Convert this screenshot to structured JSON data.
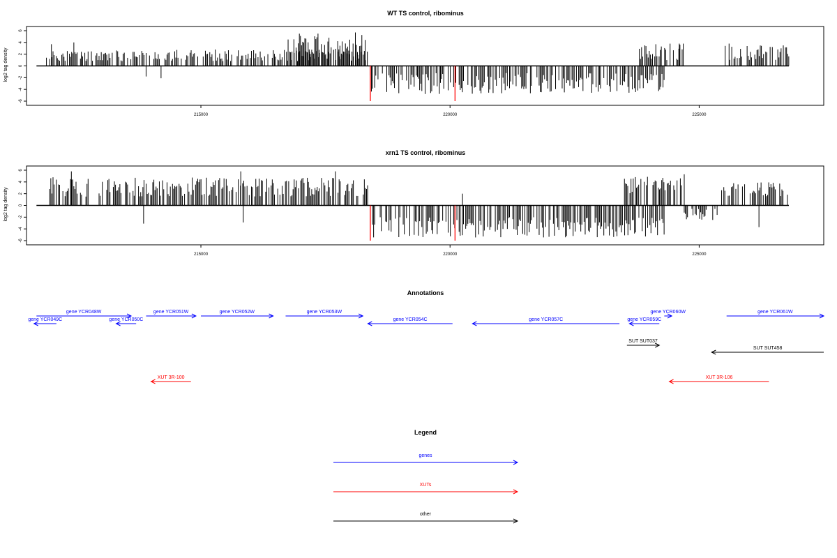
{
  "figure": {
    "legend_title": "Legend",
    "legend_items": [
      {
        "label": "genes",
        "color": "#0000ff"
      },
      {
        "label": "XUTs",
        "color": "#ff0000"
      },
      {
        "label": "other",
        "color": "#000000"
      }
    ],
    "colors": {
      "gene": "#0000ff",
      "xut": "#ff0000",
      "other": "#000000",
      "bar": "#000000",
      "highlight": "#ff0000"
    }
  },
  "chart_data": [
    {
      "type": "bar",
      "title": "WT TS control, ribominus",
      "ylabel": "log2 tag density",
      "xlim": [
        211500,
        227500
      ],
      "ylim": [
        -6,
        6
      ],
      "y_ticks": [
        -6,
        -4,
        -2,
        0,
        2,
        4,
        6
      ],
      "x_ticks": [
        215000,
        220000,
        225000
      ],
      "segments": [
        {
          "from": 211900,
          "to": 218350,
          "min": 0.8,
          "max": 2.8,
          "seed": 11
        },
        {
          "from": 216800,
          "to": 218350,
          "min": 2.0,
          "max": 5.5,
          "seed": 12
        },
        {
          "from": 218400,
          "to": 224300,
          "min": -4.8,
          "max": -1.2,
          "seed": 13
        },
        {
          "from": 223800,
          "to": 224700,
          "min": 1.0,
          "max": 3.8,
          "seed": 14
        },
        {
          "from": 225500,
          "to": 226800,
          "min": 1.0,
          "max": 3.5,
          "seed": 15
        }
      ],
      "spikes": [
        [
          212000,
          3.7
        ],
        [
          212450,
          4.0
        ],
        [
          212600,
          2.4
        ],
        [
          213900,
          -1.8
        ],
        [
          214200,
          -2.1
        ],
        [
          216750,
          4.5
        ],
        [
          217350,
          5.5
        ],
        [
          218100,
          5.7
        ],
        [
          224600,
          3.8
        ],
        [
          225600,
          3.8
        ]
      ],
      "highlights": [
        [
          218400,
          -6
        ],
        [
          220100,
          -6
        ]
      ]
    },
    {
      "type": "bar",
      "title": "xrn1 TS control, ribominus",
      "ylabel": "log2 tag density",
      "xlim": [
        211500,
        227500
      ],
      "ylim": [
        -6,
        6
      ],
      "y_ticks": [
        -6,
        -4,
        -2,
        0,
        2,
        4,
        6
      ],
      "x_ticks": [
        215000,
        220000,
        225000
      ],
      "segments": [
        {
          "from": 211900,
          "to": 218350,
          "min": 1.5,
          "max": 4.8,
          "seed": 21
        },
        {
          "from": 218400,
          "to": 224300,
          "min": -5.5,
          "max": -2.0,
          "seed": 22
        },
        {
          "from": 223500,
          "to": 224650,
          "min": 2.0,
          "max": 5.0,
          "seed": 23
        },
        {
          "from": 224700,
          "to": 225400,
          "min": -2.5,
          "max": -0.5,
          "seed": 24
        },
        {
          "from": 225450,
          "to": 226800,
          "min": 1.5,
          "max": 4.0,
          "seed": 25
        }
      ],
      "spikes": [
        [
          212400,
          5.8
        ],
        [
          213850,
          -3.1
        ],
        [
          215800,
          5.8
        ],
        [
          215850,
          -2.9
        ],
        [
          217700,
          5.8
        ],
        [
          220250,
          2.0
        ],
        [
          224700,
          5.3
        ],
        [
          226200,
          -3.7
        ]
      ],
      "highlights": [
        [
          218400,
          -6
        ],
        [
          220100,
          -6
        ]
      ]
    },
    {
      "type": "table",
      "title": "Annotations",
      "xlim": [
        211500,
        227500
      ],
      "features": [
        {
          "label": "gene YCR048W",
          "kind": "gene",
          "start": 211700,
          "end": 213600,
          "strand": "+",
          "row": 0
        },
        {
          "label": "gene YCR049C",
          "kind": "gene",
          "start": 211650,
          "end": 212100,
          "strand": "-",
          "row": 1
        },
        {
          "label": "gene YCR050C",
          "kind": "gene",
          "start": 213300,
          "end": 213700,
          "strand": "-",
          "row": 1
        },
        {
          "label": "gene YCR051W",
          "kind": "gene",
          "start": 213900,
          "end": 214900,
          "strand": "+",
          "row": 0
        },
        {
          "label": "gene YCR052W",
          "kind": "gene",
          "start": 215000,
          "end": 216450,
          "strand": "+",
          "row": 0
        },
        {
          "label": "gene YCR053W",
          "kind": "gene",
          "start": 216700,
          "end": 218250,
          "strand": "+",
          "row": 0
        },
        {
          "label": "gene YCR054C",
          "kind": "gene",
          "start": 218350,
          "end": 220050,
          "strand": "-",
          "row": 1
        },
        {
          "label": "gene YCR057C",
          "kind": "gene",
          "start": 220450,
          "end": 223400,
          "strand": "-",
          "row": 1
        },
        {
          "label": "gene YCR059C",
          "kind": "gene",
          "start": 223600,
          "end": 224200,
          "strand": "-",
          "row": 1
        },
        {
          "label": "gene YCR060W",
          "kind": "gene",
          "start": 224300,
          "end": 224450,
          "strand": "+",
          "row": 0
        },
        {
          "label": "gene YCR061W",
          "kind": "gene",
          "start": 225550,
          "end": 227500,
          "strand": "+",
          "row": 0
        },
        {
          "label": "SUT SUT037",
          "kind": "other",
          "start": 223550,
          "end": 224200,
          "strand": "+",
          "row": 2
        },
        {
          "label": "SUT SUT458",
          "kind": "other",
          "start": 225250,
          "end": 227500,
          "strand": "-",
          "row": 3
        },
        {
          "label": "XUT 3R-100",
          "kind": "xut",
          "start": 214000,
          "end": 214800,
          "strand": "-",
          "row": 4
        },
        {
          "label": "XUT 3R-106",
          "kind": "xut",
          "start": 224400,
          "end": 226400,
          "strand": "-",
          "row": 4
        }
      ]
    }
  ]
}
